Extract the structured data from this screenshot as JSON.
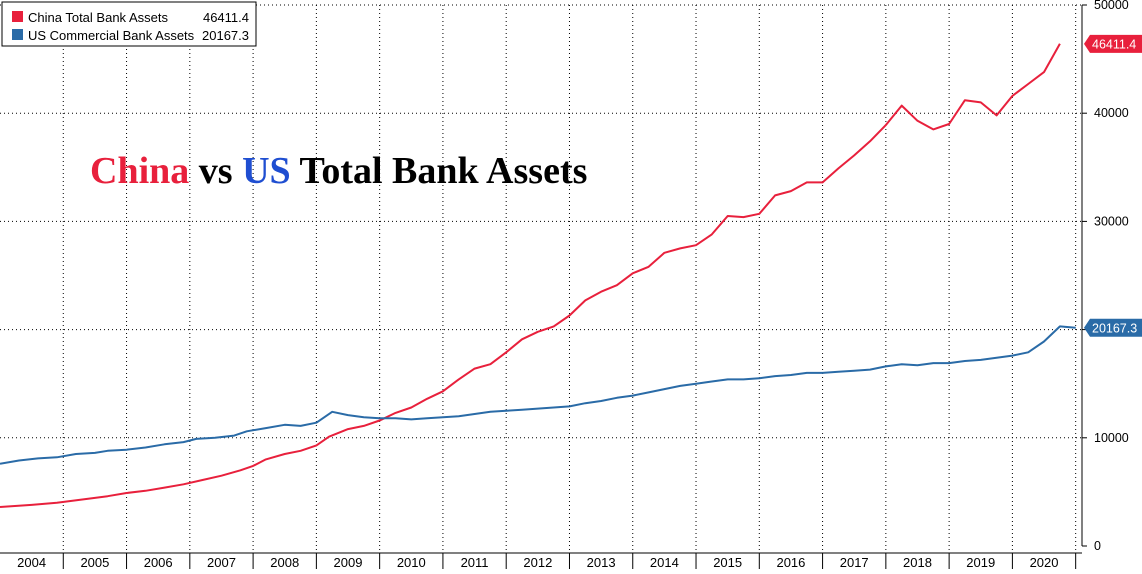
{
  "chart_data": {
    "type": "line",
    "title_parts": [
      {
        "text": "China",
        "color": "#e8203c"
      },
      {
        "text": " vs ",
        "color": "#000000"
      },
      {
        "text": "US",
        "color": "#1f4ed1"
      },
      {
        "text": " Total Bank Assets",
        "color": "#000000"
      }
    ],
    "x_ticks": [
      "2004",
      "2005",
      "2006",
      "2007",
      "2008",
      "2009",
      "2010",
      "2011",
      "2012",
      "2013",
      "2014",
      "2015",
      "2016",
      "2017",
      "2018",
      "2019",
      "2020"
    ],
    "xlim": [
      2004.0,
      2021.1
    ],
    "ylim": [
      0,
      50000
    ],
    "y_ticks": [
      {
        "value": 0,
        "label": "0"
      },
      {
        "value": 10000,
        "label": "10000"
      },
      {
        "value": 20000,
        "label": "20000"
      },
      {
        "value": 30000,
        "label": "30000"
      },
      {
        "value": 40000,
        "label": "40000"
      },
      {
        "value": 50000,
        "label": "50000"
      }
    ],
    "grid": true,
    "legend_position": "top-left",
    "series": [
      {
        "name": "China Total Bank Assets",
        "last_value": "46411.4",
        "color": "#e8203c",
        "points": [
          [
            2004.0,
            3600
          ],
          [
            2004.5,
            3800
          ],
          [
            2004.9,
            4000
          ],
          [
            2005.3,
            4300
          ],
          [
            2005.7,
            4600
          ],
          [
            2006.0,
            4900
          ],
          [
            2006.3,
            5100
          ],
          [
            2006.6,
            5400
          ],
          [
            2006.9,
            5700
          ],
          [
            2007.2,
            6100
          ],
          [
            2007.5,
            6500
          ],
          [
            2007.8,
            7000
          ],
          [
            2008.0,
            7400
          ],
          [
            2008.2,
            8000
          ],
          [
            2008.5,
            8500
          ],
          [
            2008.75,
            8800
          ],
          [
            2009.0,
            9300
          ],
          [
            2009.2,
            10100
          ],
          [
            2009.5,
            10800
          ],
          [
            2009.75,
            11100
          ],
          [
            2010.0,
            11600
          ],
          [
            2010.25,
            12300
          ],
          [
            2010.5,
            12800
          ],
          [
            2010.75,
            13600
          ],
          [
            2011.0,
            14300
          ],
          [
            2011.25,
            15400
          ],
          [
            2011.5,
            16400
          ],
          [
            2011.75,
            16800
          ],
          [
            2012.0,
            17900
          ],
          [
            2012.25,
            19100
          ],
          [
            2012.5,
            19800
          ],
          [
            2012.75,
            20300
          ],
          [
            2013.0,
            21300
          ],
          [
            2013.25,
            22700
          ],
          [
            2013.5,
            23500
          ],
          [
            2013.75,
            24100
          ],
          [
            2014.0,
            25200
          ],
          [
            2014.25,
            25800
          ],
          [
            2014.5,
            27100
          ],
          [
            2014.75,
            27500
          ],
          [
            2015.0,
            27800
          ],
          [
            2015.25,
            28800
          ],
          [
            2015.5,
            30500
          ],
          [
            2015.75,
            30400
          ],
          [
            2016.0,
            30700
          ],
          [
            2016.25,
            32400
          ],
          [
            2016.5,
            32800
          ],
          [
            2016.75,
            33600
          ],
          [
            2017.0,
            33600
          ],
          [
            2017.25,
            34900
          ],
          [
            2017.5,
            36100
          ],
          [
            2017.75,
            37400
          ],
          [
            2018.0,
            38900
          ],
          [
            2018.25,
            40700
          ],
          [
            2018.5,
            39300
          ],
          [
            2018.75,
            38500
          ],
          [
            2019.0,
            39000
          ],
          [
            2019.25,
            41200
          ],
          [
            2019.5,
            41000
          ],
          [
            2019.75,
            39800
          ],
          [
            2020.0,
            41600
          ],
          [
            2020.25,
            42700
          ],
          [
            2020.5,
            43800
          ],
          [
            2020.75,
            46411
          ]
        ]
      },
      {
        "name": "US Commercial Bank Assets",
        "last_value": "20167.3",
        "color": "#2a6ba7",
        "points": [
          [
            2004.0,
            7600
          ],
          [
            2004.3,
            7900
          ],
          [
            2004.6,
            8100
          ],
          [
            2004.9,
            8200
          ],
          [
            2005.2,
            8500
          ],
          [
            2005.5,
            8600
          ],
          [
            2005.7,
            8800
          ],
          [
            2006.0,
            8900
          ],
          [
            2006.3,
            9100
          ],
          [
            2006.6,
            9400
          ],
          [
            2006.9,
            9600
          ],
          [
            2007.1,
            9900
          ],
          [
            2007.4,
            10000
          ],
          [
            2007.7,
            10200
          ],
          [
            2007.9,
            10600
          ],
          [
            2008.2,
            10900
          ],
          [
            2008.5,
            11200
          ],
          [
            2008.75,
            11100
          ],
          [
            2009.0,
            11400
          ],
          [
            2009.25,
            12400
          ],
          [
            2009.5,
            12100
          ],
          [
            2009.75,
            11900
          ],
          [
            2010.0,
            11800
          ],
          [
            2010.25,
            11800
          ],
          [
            2010.5,
            11700
          ],
          [
            2010.75,
            11800
          ],
          [
            2011.0,
            11900
          ],
          [
            2011.25,
            12000
          ],
          [
            2011.5,
            12200
          ],
          [
            2011.75,
            12400
          ],
          [
            2012.0,
            12500
          ],
          [
            2012.25,
            12600
          ],
          [
            2012.5,
            12700
          ],
          [
            2012.75,
            12800
          ],
          [
            2013.0,
            12900
          ],
          [
            2013.25,
            13200
          ],
          [
            2013.5,
            13400
          ],
          [
            2013.75,
            13700
          ],
          [
            2014.0,
            13900
          ],
          [
            2014.25,
            14200
          ],
          [
            2014.5,
            14500
          ],
          [
            2014.75,
            14800
          ],
          [
            2015.0,
            15000
          ],
          [
            2015.25,
            15200
          ],
          [
            2015.5,
            15400
          ],
          [
            2015.75,
            15400
          ],
          [
            2016.0,
            15500
          ],
          [
            2016.25,
            15700
          ],
          [
            2016.5,
            15800
          ],
          [
            2016.75,
            16000
          ],
          [
            2017.0,
            16000
          ],
          [
            2017.25,
            16100
          ],
          [
            2017.5,
            16200
          ],
          [
            2017.75,
            16300
          ],
          [
            2018.0,
            16600
          ],
          [
            2018.25,
            16800
          ],
          [
            2018.5,
            16700
          ],
          [
            2018.75,
            16900
          ],
          [
            2019.0,
            16900
          ],
          [
            2019.25,
            17100
          ],
          [
            2019.5,
            17200
          ],
          [
            2019.75,
            17400
          ],
          [
            2020.0,
            17600
          ],
          [
            2020.25,
            17900
          ],
          [
            2020.5,
            18900
          ],
          [
            2020.75,
            20300
          ],
          [
            2021.0,
            20167
          ]
        ]
      }
    ]
  }
}
